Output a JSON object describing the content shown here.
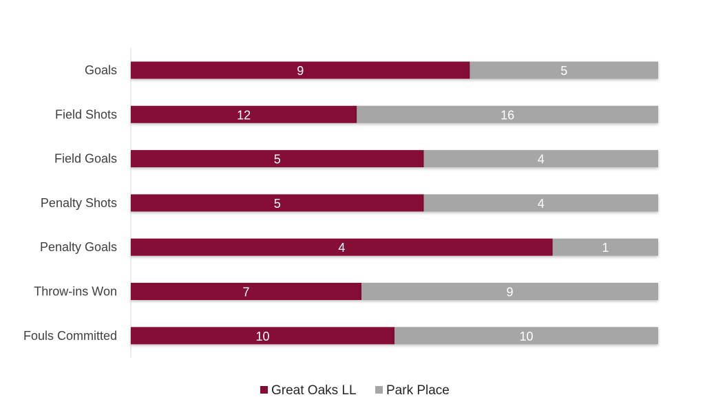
{
  "chart_data": {
    "type": "bar",
    "orientation": "horizontal",
    "stacked": "percent",
    "title": "",
    "xlabel": "",
    "ylabel": "",
    "grid": false,
    "legend_position": "bottom",
    "categories": [
      "Goals",
      "Field Shots",
      "Field Goals",
      "Penalty Shots",
      "Penalty Goals",
      "Throw-ins Won",
      "Fouls Committed"
    ],
    "series": [
      {
        "name": "Great Oaks LL",
        "color": "#850A38",
        "values": [
          9,
          12,
          5,
          5,
          4,
          7,
          10
        ]
      },
      {
        "name": "Park Place",
        "color": "#A6A6A6",
        "values": [
          5,
          16,
          4,
          4,
          1,
          9,
          10
        ]
      }
    ]
  }
}
